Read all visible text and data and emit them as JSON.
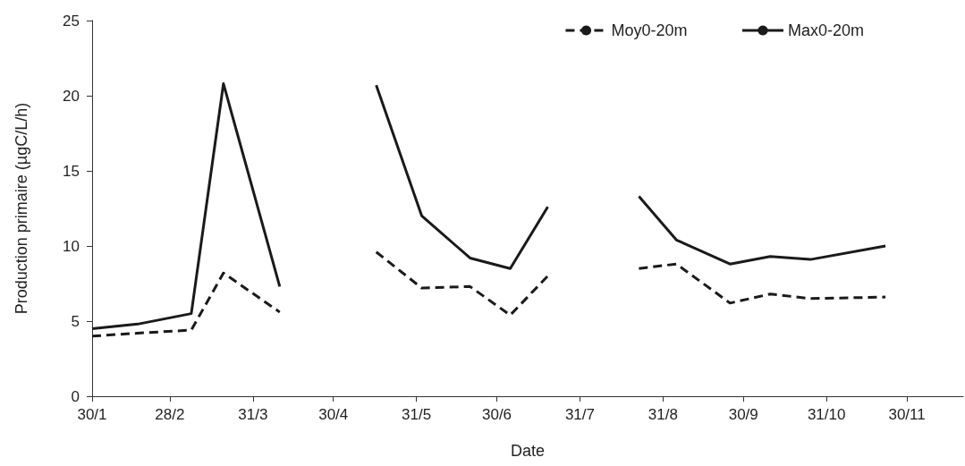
{
  "chart_data": {
    "type": "line",
    "xlabel": "Date",
    "ylabel": "Production primaire (µgC/L/h)",
    "x": [
      "--01-30",
      "--02-16",
      "--03-08",
      "--03-20",
      "--04-10",
      "--04-30",
      "--05-16",
      "--06-02",
      "--06-20",
      "--07-05",
      "--07-19",
      "--08-05",
      "--08-22",
      "--09-05",
      "--09-25",
      "--10-10",
      "--10-25",
      "--11-22"
    ],
    "series": [
      {
        "name": "Moy0-20m",
        "color": "#1a1a1a",
        "line_style": "dashed",
        "values": [
          4.0,
          4.2,
          4.4,
          8.2,
          5.6,
          null,
          9.6,
          7.2,
          7.3,
          5.4,
          8.0,
          null,
          8.5,
          8.8,
          6.2,
          6.8,
          6.5,
          6.6
        ]
      },
      {
        "name": "Max0-20m",
        "color": "#1a1a1a",
        "line_style": "solid",
        "values": [
          4.5,
          4.8,
          5.5,
          20.8,
          7.3,
          null,
          20.7,
          12.0,
          9.2,
          8.5,
          12.6,
          null,
          13.3,
          10.4,
          8.8,
          9.3,
          9.1,
          10.0
        ]
      }
    ],
    "xlim": [
      "--01-30",
      "--12-21"
    ],
    "xticks": [
      {
        "value": "--01-30",
        "label": "30/1"
      },
      {
        "value": "--02-28",
        "label": "28/2"
      },
      {
        "value": "--03-31",
        "label": "31/3"
      },
      {
        "value": "--04-30",
        "label": "30/4"
      },
      {
        "value": "--05-31",
        "label": "31/5"
      },
      {
        "value": "--06-30",
        "label": "30/6"
      },
      {
        "value": "--07-31",
        "label": "31/7"
      },
      {
        "value": "--08-31",
        "label": "31/8"
      },
      {
        "value": "--09-30",
        "label": "30/9"
      },
      {
        "value": "--10-31",
        "label": "31/10"
      },
      {
        "value": "--11-30",
        "label": "30/11"
      }
    ],
    "ylim": [
      0,
      25
    ],
    "yticks": [
      0,
      5,
      10,
      15,
      20,
      25
    ],
    "grid": false,
    "legend": "top right",
    "marker": "none"
  }
}
